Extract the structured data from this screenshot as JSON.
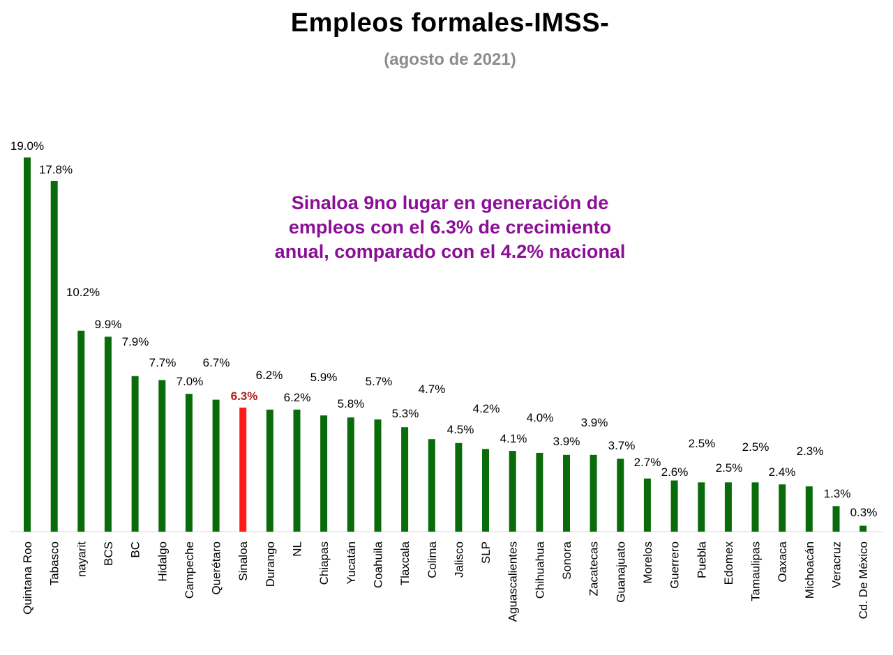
{
  "header": {
    "title": "Empleos formales-IMSS-",
    "subtitle": "(agosto de 2021)"
  },
  "annotation": {
    "lines": [
      "Sinaloa 9no lugar en generación de",
      "empleos con el 6.3% de crecimiento",
      "anual, comparado con el 4.2% nacional"
    ]
  },
  "colors": {
    "bar": "#0a6b0a",
    "highlight_bar": "#ff1a1a",
    "highlight_label": "#b01c1c",
    "annotation": "#8b0f96",
    "subtitle": "#8c8c8c"
  },
  "chart_data": {
    "type": "bar",
    "title": "Empleos formales-IMSS-",
    "subtitle": "(agosto de 2021)",
    "xlabel": "",
    "ylabel": "",
    "ylim": [
      0,
      19
    ],
    "grid": false,
    "highlight": "Sinaloa",
    "categories": [
      "Quintana Roo",
      "Tabasco",
      "nayarit",
      "BCS",
      "BC",
      "Hidalgo",
      "Campeche",
      "Querétaro",
      "Sinaloa",
      "Durango",
      "NL",
      "Chiapas",
      "Yucatán",
      "Coahuila",
      "Tlaxcala",
      "Colima",
      "Jalisco",
      "SLP",
      "Aguascalientes",
      "Chihuahua",
      "Sonora",
      "Zacatecas",
      "Guanajuato",
      "Morelos",
      "Guerrero",
      "Puebla",
      "Edomex",
      "Tamaulipas",
      "Oaxaca",
      "Michoacán",
      "Veracruz",
      "Cd. De México"
    ],
    "values": [
      19.0,
      17.8,
      10.2,
      9.9,
      7.9,
      7.7,
      7.0,
      6.7,
      6.3,
      6.2,
      6.2,
      5.9,
      5.8,
      5.7,
      5.3,
      4.7,
      4.5,
      4.2,
      4.1,
      4.0,
      3.9,
      3.9,
      3.7,
      2.7,
      2.6,
      2.5,
      2.5,
      2.5,
      2.4,
      2.3,
      1.3,
      0.3
    ],
    "value_labels": [
      "19.0%",
      "17.8%",
      "10.2%",
      "9.9%",
      "7.9%",
      "7.7%",
      "7.0%",
      "6.7%",
      "6.3%",
      "6.2%",
      "6.2%",
      "5.9%",
      "5.8%",
      "5.7%",
      "5.3%",
      "4.7%",
      "4.5%",
      "4.2%",
      "4.1%",
      "4.0%",
      "3.9%",
      "3.9%",
      "3.7%",
      "2.7%",
      "2.6%",
      "2.5%",
      "2.5%",
      "2.5%",
      "2.4%",
      "2.3%",
      "1.3%",
      "0.3%"
    ]
  }
}
